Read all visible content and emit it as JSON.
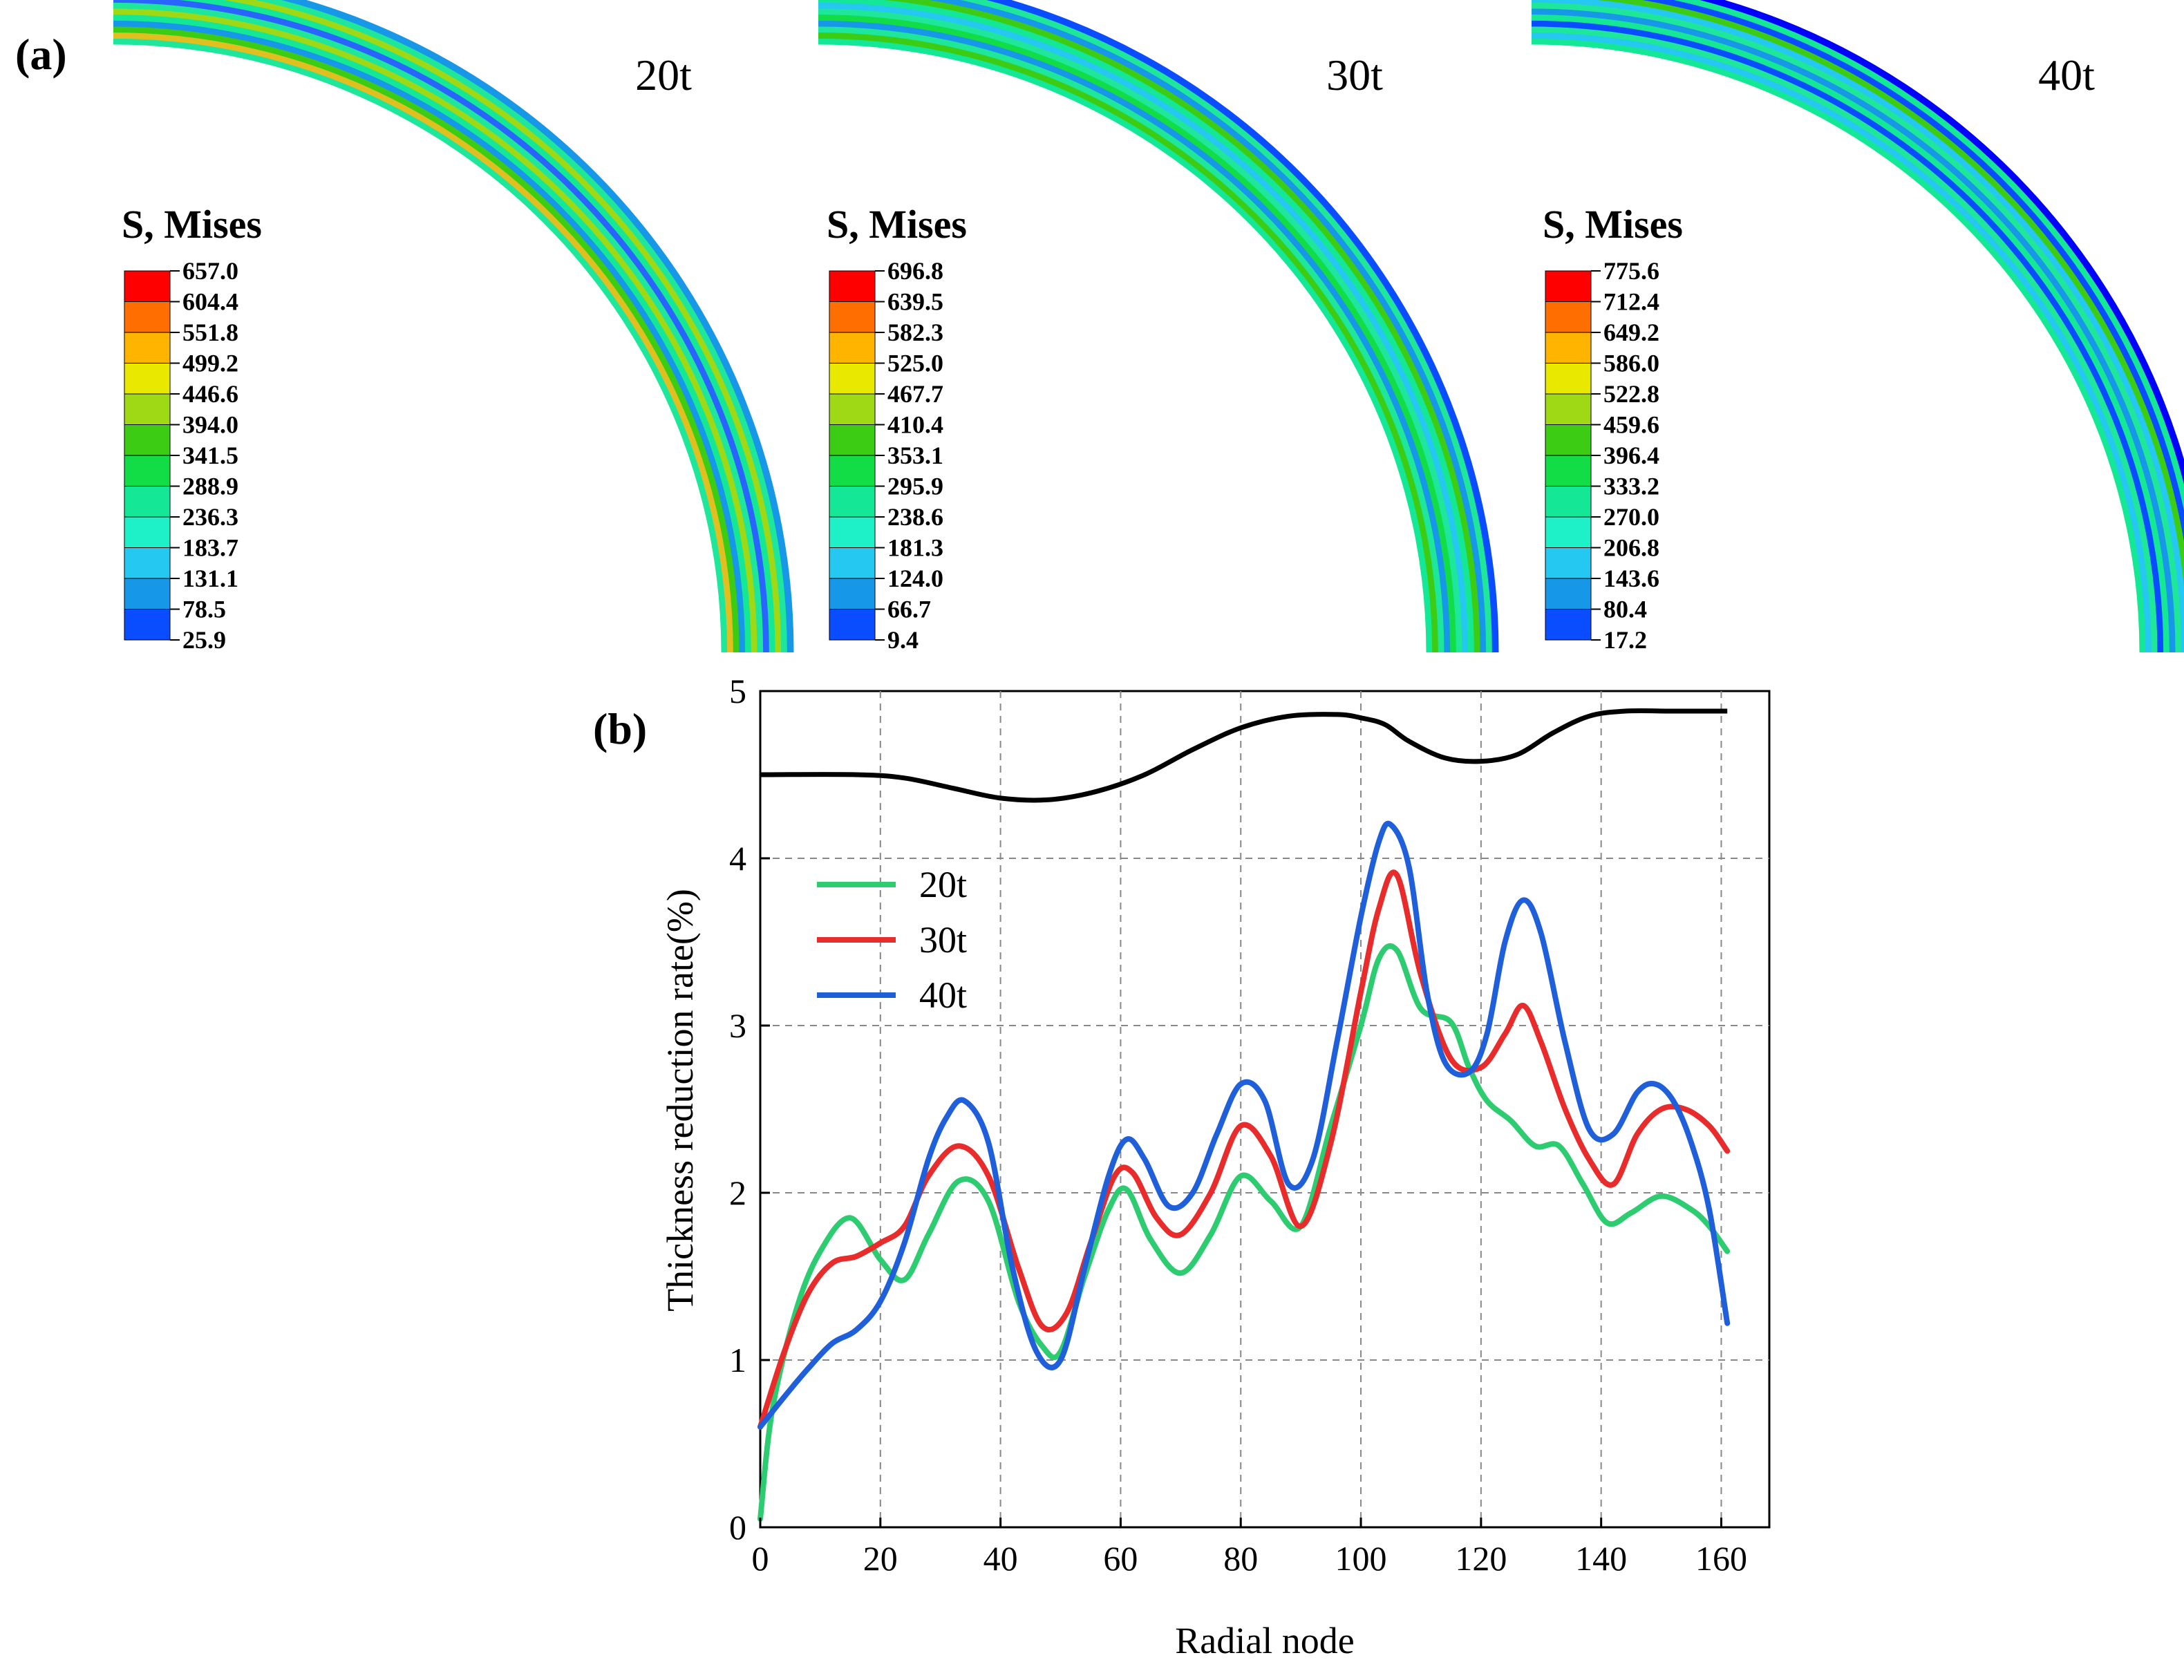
{
  "panel_a": {
    "label": "(a)",
    "legend_title": "S, Mises",
    "colormap": [
      "#0000ff",
      "#0a4cff",
      "#1797e8",
      "#25c8f0",
      "#1ef0c8",
      "#14e896",
      "#12dc46",
      "#3ccc14",
      "#9fd814",
      "#e8e800",
      "#ffb400",
      "#ff6e00",
      "#ff0000"
    ],
    "cases": [
      {
        "title": "20t",
        "levels": [
          "657.0",
          "604.4",
          "551.8",
          "499.2",
          "446.6",
          "394.0",
          "341.5",
          "288.9",
          "236.3",
          "183.7",
          "131.1",
          "78.5",
          "25.9"
        ]
      },
      {
        "title": "30t",
        "levels": [
          "696.8",
          "639.5",
          "582.3",
          "525.0",
          "467.7",
          "410.4",
          "353.1",
          "295.9",
          "238.6",
          "181.3",
          "124.0",
          "66.7",
          "9.4"
        ]
      },
      {
        "title": "40t",
        "levels": [
          "775.6",
          "712.4",
          "649.2",
          "586.0",
          "522.8",
          "459.6",
          "396.4",
          "333.2",
          "270.0",
          "206.8",
          "143.6",
          "80.4",
          "17.2"
        ]
      }
    ]
  },
  "panel_b": {
    "label": "(b)"
  },
  "chart_data": {
    "type": "line",
    "title": "",
    "xlabel": "Radial node",
    "ylabel": "Thickness reduction rate(%)",
    "xlim": [
      0,
      168
    ],
    "ylim": [
      0,
      5
    ],
    "xticks": [
      "0",
      "20",
      "40",
      "60",
      "80",
      "100",
      "120",
      "140",
      "160"
    ],
    "yticks": [
      "0",
      "1",
      "2",
      "3",
      "4",
      "5"
    ],
    "grid": true,
    "legend_position": "upper-left",
    "series": [
      {
        "name": "20t",
        "color": "#2ecc71",
        "x": [
          0,
          2,
          6,
          10,
          15,
          20,
          24,
          28,
          33,
          38,
          43,
          47,
          50,
          54,
          58,
          61,
          65,
          70,
          75,
          80,
          85,
          90,
          95,
          100,
          103,
          106,
          110,
          115,
          118,
          121,
          125,
          129,
          133,
          137,
          141,
          145,
          150,
          155,
          158,
          161
        ],
        "y": [
          0.05,
          0.7,
          1.3,
          1.65,
          1.85,
          1.6,
          1.48,
          1.75,
          2.07,
          1.95,
          1.35,
          1.08,
          1.05,
          1.5,
          1.9,
          2.02,
          1.72,
          1.52,
          1.75,
          2.1,
          1.95,
          1.8,
          2.4,
          3.0,
          3.4,
          3.45,
          3.1,
          3.02,
          2.75,
          2.55,
          2.43,
          2.28,
          2.28,
          2.05,
          1.82,
          1.88,
          1.98,
          1.9,
          1.8,
          1.65
        ]
      },
      {
        "name": "30t",
        "color": "#e82c2c",
        "x": [
          0,
          4,
          8,
          12,
          16,
          20,
          24,
          28,
          33,
          38,
          43,
          47,
          51,
          55,
          59,
          62,
          66,
          70,
          75,
          80,
          85,
          90,
          95,
          100,
          103,
          106,
          110,
          115,
          120,
          124,
          127,
          130,
          134,
          138,
          142,
          146,
          150,
          154,
          158,
          161
        ],
        "y": [
          0.6,
          1.05,
          1.4,
          1.58,
          1.62,
          1.7,
          1.8,
          2.1,
          2.28,
          2.1,
          1.55,
          1.2,
          1.28,
          1.7,
          2.1,
          2.12,
          1.85,
          1.75,
          2.0,
          2.4,
          2.22,
          1.8,
          2.3,
          3.2,
          3.7,
          3.9,
          3.3,
          2.8,
          2.75,
          2.95,
          3.12,
          2.9,
          2.5,
          2.2,
          2.05,
          2.35,
          2.5,
          2.5,
          2.4,
          2.25
        ]
      },
      {
        "name": "40t",
        "color": "#1f5fd9",
        "x": [
          0,
          4,
          8,
          12,
          16,
          20,
          24,
          28,
          31,
          34,
          38,
          42,
          46,
          50,
          54,
          58,
          61,
          64,
          68,
          72,
          76,
          80,
          84,
          88,
          92,
          96,
          100,
          103,
          105,
          108,
          111,
          114,
          118,
          121,
          124,
          127,
          130,
          134,
          138,
          142,
          146,
          149,
          152,
          155,
          158,
          161
        ],
        "y": [
          0.6,
          0.78,
          0.95,
          1.1,
          1.18,
          1.35,
          1.7,
          2.2,
          2.45,
          2.55,
          2.3,
          1.55,
          1.05,
          1.0,
          1.55,
          2.1,
          2.32,
          2.2,
          1.92,
          2.0,
          2.35,
          2.65,
          2.55,
          2.05,
          2.2,
          2.9,
          3.65,
          4.1,
          4.2,
          3.95,
          3.2,
          2.78,
          2.72,
          2.95,
          3.5,
          3.75,
          3.55,
          2.9,
          2.38,
          2.35,
          2.6,
          2.65,
          2.55,
          2.3,
          1.9,
          1.22
        ]
      }
    ],
    "reference_profile": {
      "color": "#000000",
      "x": [
        0,
        16,
        24,
        32,
        40,
        48,
        56,
        64,
        72,
        80,
        88,
        96,
        100,
        104,
        108,
        114,
        120,
        126,
        132,
        138,
        144,
        152,
        161
      ],
      "y": [
        4.5,
        4.5,
        4.48,
        4.42,
        4.36,
        4.35,
        4.4,
        4.5,
        4.65,
        4.78,
        4.85,
        4.86,
        4.84,
        4.8,
        4.7,
        4.6,
        4.58,
        4.62,
        4.75,
        4.85,
        4.88,
        4.88,
        4.88
      ]
    }
  }
}
